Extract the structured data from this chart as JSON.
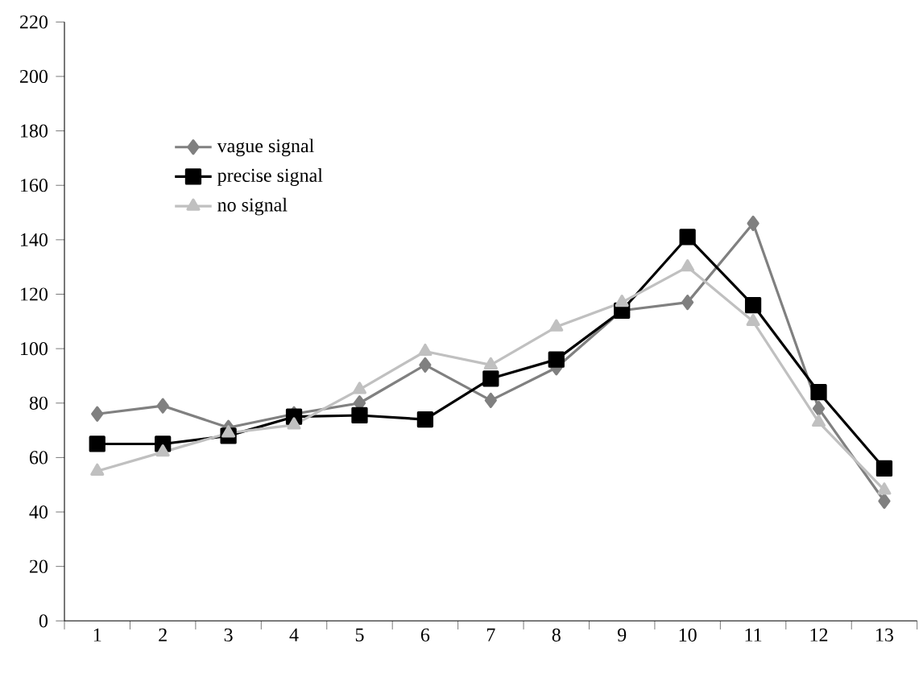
{
  "chart_data": {
    "type": "line",
    "categories": [
      "1",
      "2",
      "3",
      "4",
      "5",
      "6",
      "7",
      "8",
      "9",
      "10",
      "11",
      "12",
      "13"
    ],
    "series": [
      {
        "name": "vague signal",
        "color": "#808080",
        "marker": "diamond",
        "values": [
          76,
          79,
          71,
          76,
          80,
          94,
          81,
          93,
          114,
          117,
          146,
          78,
          44
        ]
      },
      {
        "name": "precise signal",
        "color": "#000000",
        "marker": "square",
        "values": [
          65,
          65,
          68,
          75,
          75.5,
          74,
          89,
          96,
          114,
          141,
          116,
          84,
          56
        ]
      },
      {
        "name": "no signal",
        "color": "#c0c0c0",
        "marker": "triangle",
        "values": [
          55,
          62,
          69,
          72,
          85,
          99,
          94,
          108,
          117,
          130,
          110,
          73,
          48
        ]
      }
    ],
    "ylim": [
      0,
      220
    ],
    "yticks": [
      0,
      20,
      40,
      60,
      80,
      100,
      120,
      140,
      160,
      180,
      200,
      220
    ],
    "grid": false,
    "legend": "top left",
    "line_style": "solid"
  }
}
